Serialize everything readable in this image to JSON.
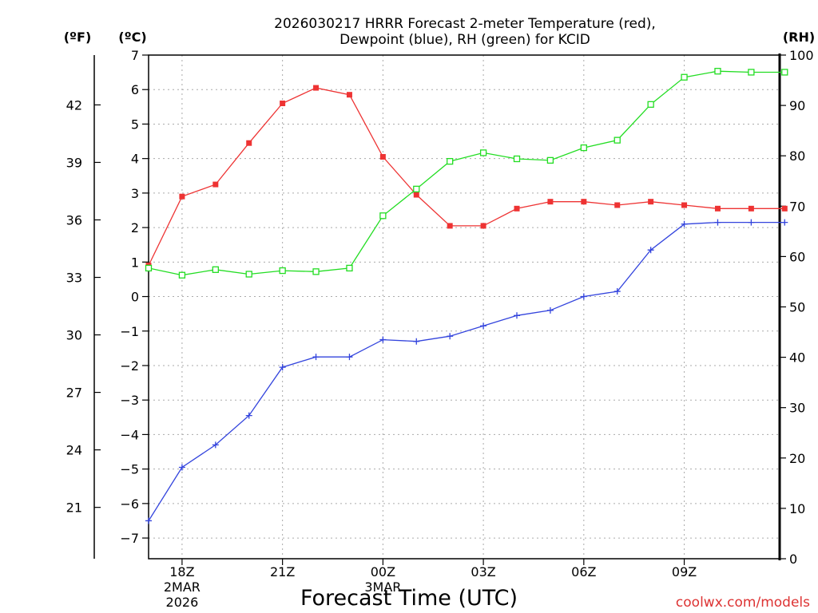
{
  "chart_data": {
    "type": "line",
    "title_line1": "2026030217 HRRR Forecast 2-meter Temperature (red),",
    "title_line2": "Dewpoint (blue), RH (green) for KCID",
    "xlabel": "Forecast Time (UTC)",
    "credit": "coolwx.com/models",
    "unit_f": "(ºF)",
    "unit_c": "(ºC)",
    "unit_rh": "(RH)",
    "x": [
      0,
      1,
      2,
      3,
      4,
      5,
      6,
      7,
      8,
      9,
      10,
      11,
      12,
      13,
      14,
      15,
      16,
      17,
      18,
      19
    ],
    "x_ticks": [
      {
        "x": 1,
        "label": "18Z",
        "sub1": "2MAR",
        "sub2": "2026"
      },
      {
        "x": 4,
        "label": "21Z",
        "sub1": "",
        "sub2": ""
      },
      {
        "x": 7,
        "label": "00Z",
        "sub1": "3MAR",
        "sub2": ""
      },
      {
        "x": 10,
        "label": "03Z",
        "sub1": "",
        "sub2": ""
      },
      {
        "x": 13,
        "label": "06Z",
        "sub1": "",
        "sub2": ""
      },
      {
        "x": 16,
        "label": "09Z",
        "sub1": "",
        "sub2": ""
      }
    ],
    "xlim": [
      0,
      18.85
    ],
    "ylim_c": [
      -7.6,
      7
    ],
    "y_ticks_c": [
      "7",
      "6",
      "5",
      "4",
      "3",
      "2",
      "1",
      "0",
      "−1",
      "−2",
      "−3",
      "−4",
      "−5",
      "−6",
      "−7"
    ],
    "y_ticks_f": [
      "42",
      "39",
      "36",
      "33",
      "30",
      "27",
      "24",
      "21"
    ],
    "ylim_rh": [
      0,
      100
    ],
    "y_ticks_rh": [
      "100",
      "90",
      "80",
      "70",
      "60",
      "50",
      "40",
      "30",
      "20",
      "10",
      "0"
    ],
    "grid": true,
    "series": [
      {
        "name": "2-meter Temperature",
        "axis": "C",
        "color": "#ee3333",
        "marker": "square-filled",
        "values": [
          0.9,
          2.9,
          3.25,
          4.45,
          5.6,
          6.05,
          5.85,
          4.05,
          2.95,
          2.05,
          2.05,
          2.55,
          2.75,
          2.75,
          2.65,
          2.75,
          2.65,
          2.55,
          2.55,
          2.55
        ]
      },
      {
        "name": "Dewpoint",
        "axis": "C",
        "color": "#3344dd",
        "marker": "plus",
        "values": [
          -6.5,
          -4.95,
          -4.3,
          -3.45,
          -2.05,
          -1.75,
          -1.75,
          -1.25,
          -1.3,
          -1.15,
          -0.85,
          -0.55,
          -0.4,
          0.0,
          0.15,
          1.35,
          2.1,
          2.15,
          2.15,
          2.15
        ]
      },
      {
        "name": "RH",
        "axis": "RH",
        "color": "#22dd22",
        "marker": "square-open",
        "values": [
          57.7,
          56.3,
          57.4,
          56.5,
          57.2,
          57.0,
          57.7,
          68.1,
          73.4,
          78.9,
          80.6,
          79.4,
          79.1,
          81.6,
          83.1,
          90.2,
          95.6,
          96.8,
          96.6,
          96.6
        ]
      }
    ]
  }
}
